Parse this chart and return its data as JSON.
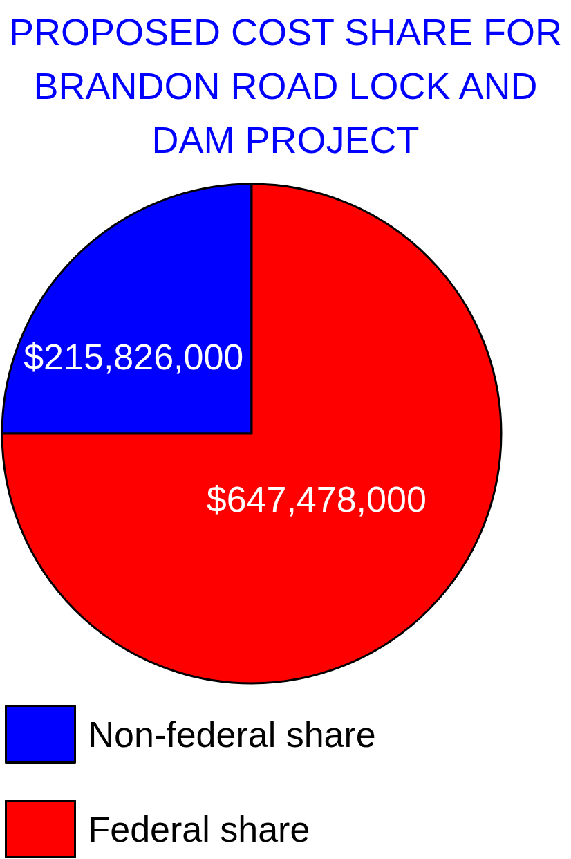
{
  "chart_data": {
    "type": "pie",
    "title": "PROPOSED COST SHARE FOR BRANDON ROAD LOCK AND DAM PROJECT",
    "categories": [
      "Non-federal share",
      "Federal share"
    ],
    "values": [
      215826000,
      647478000
    ],
    "colors": [
      "#0000ff",
      "#ff0000"
    ],
    "value_labels": [
      "$215,826,000",
      "$647,478,000"
    ],
    "legend": "bottom left"
  }
}
